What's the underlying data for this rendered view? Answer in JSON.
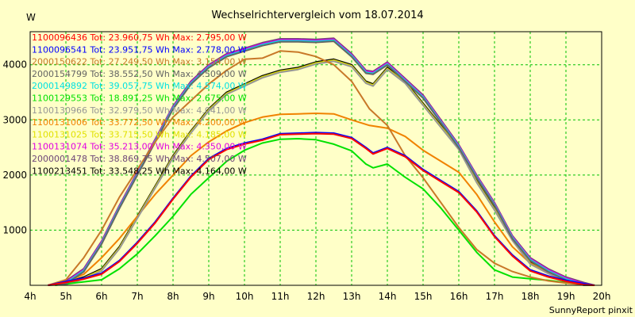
{
  "chart_data": {
    "type": "line",
    "title": "Wechselrichtervergleich vom 18.07.2014",
    "ylabel": "W",
    "footer": "SunnyReport pinxit",
    "x_ticks": [
      4,
      5,
      6,
      7,
      8,
      9,
      10,
      11,
      12,
      13,
      14,
      15,
      16,
      17,
      18,
      19,
      20
    ],
    "x_tick_labels": [
      "4h",
      "5h",
      "6h",
      "7h",
      "8h",
      "9h",
      "10h",
      "11h",
      "12h",
      "13h",
      "14h",
      "15h",
      "16h",
      "17h",
      "18h",
      "19h",
      "20h"
    ],
    "y_ticks": [
      1000,
      2000,
      3000,
      4000
    ],
    "y_tick_labels": [
      "1000",
      "2000",
      "3000",
      "4000"
    ],
    "xlim": [
      4,
      20
    ],
    "ylim": [
      0,
      4600
    ],
    "grid": true,
    "legend_placement": "top-left",
    "series": [
      {
        "name": "1100096436",
        "tot": "Tot: 23.960,75 Wh",
        "max": "Max: 2.795,00 W",
        "color": "#ff0000",
        "group": "lowA"
      },
      {
        "name": "1100096541",
        "tot": "Tot: 23.951,75 Wh",
        "max": "Max: 2.778,00 W",
        "color": "#0000ff",
        "group": "lowA"
      },
      {
        "name": "2000150622",
        "tot": "Tot: 27.249,50 Wh",
        "max": "Max: 3.154,00 W",
        "color": "#c87828",
        "group": "early"
      },
      {
        "name": "2000154799",
        "tot": "Tot: 38.552,50 Wh",
        "max": "Max: 4.509,00 W",
        "color": "#646464",
        "group": "high"
      },
      {
        "name": "2000149892",
        "tot": "Tot: 39.057,75 Wh",
        "max": "Max: 4.574,00 W",
        "color": "#00e1e1",
        "group": "high"
      },
      {
        "name": "1100129553",
        "tot": "Tot: 18.891,25 Wh",
        "max": "Max: 2.675,00 W",
        "color": "#00e100",
        "group": "lowB"
      },
      {
        "name": "1100130966",
        "tot": "Tot: 32.979,50 Wh",
        "max": "Max: 4.041,00 W",
        "color": "#969696",
        "group": "mid"
      },
      {
        "name": "1100131006",
        "tot": "Tot: 33.772,50 Wh",
        "max": "Max: 4.200,00 W",
        "color": "#f08200",
        "group": "orange"
      },
      {
        "name": "1100131025",
        "tot": "Tot: 33.715,50 Wh",
        "max": "Max: 4.185,00 W",
        "color": "#e1e100",
        "group": "mid"
      },
      {
        "name": "1100131074",
        "tot": "Tot: 35.213,00 Wh",
        "max": "Max: 4.350,00 W",
        "color": "#e100e1",
        "group": "high"
      },
      {
        "name": "2000001478",
        "tot": "Tot: 38.869,75 Wh",
        "max": "Max: 4.507,00 W",
        "color": "#6e4678",
        "group": "high"
      },
      {
        "name": "1100213451",
        "tot": "Tot: 33.548,25 Wh",
        "max": "Max: 4.164,00 W",
        "color": "#000000",
        "group": "mid"
      }
    ],
    "profiles": {
      "lowA": [
        [
          4.5,
          0
        ],
        [
          5,
          70
        ],
        [
          5.5,
          130
        ],
        [
          6,
          220
        ],
        [
          6.5,
          450
        ],
        [
          7,
          780
        ],
        [
          7.5,
          1150
        ],
        [
          8,
          1580
        ],
        [
          8.5,
          1980
        ],
        [
          9,
          2300
        ],
        [
          9.5,
          2480
        ],
        [
          10,
          2580
        ],
        [
          10.5,
          2650
        ],
        [
          11,
          2750
        ],
        [
          11.5,
          2760
        ],
        [
          12,
          2770
        ],
        [
          12.5,
          2760
        ],
        [
          13,
          2680
        ],
        [
          13.4,
          2500
        ],
        [
          13.6,
          2400
        ],
        [
          14,
          2500
        ],
        [
          14.5,
          2350
        ],
        [
          15,
          2100
        ],
        [
          15.5,
          1900
        ],
        [
          16,
          1700
        ],
        [
          16.5,
          1350
        ],
        [
          17,
          900
        ],
        [
          17.5,
          550
        ],
        [
          18,
          280
        ],
        [
          18.5,
          170
        ],
        [
          19,
          90
        ],
        [
          19.5,
          30
        ],
        [
          19.8,
          0
        ]
      ],
      "lowB": [
        [
          4.7,
          0
        ],
        [
          5.2,
          40
        ],
        [
          6,
          100
        ],
        [
          6.5,
          300
        ],
        [
          7,
          570
        ],
        [
          7.5,
          900
        ],
        [
          8,
          1250
        ],
        [
          8.5,
          1650
        ],
        [
          9,
          1950
        ],
        [
          9.5,
          2250
        ],
        [
          10,
          2450
        ],
        [
          10.5,
          2580
        ],
        [
          11,
          2650
        ],
        [
          11.5,
          2660
        ],
        [
          12,
          2640
        ],
        [
          12.5,
          2560
        ],
        [
          13,
          2440
        ],
        [
          13.4,
          2200
        ],
        [
          13.6,
          2130
        ],
        [
          14,
          2200
        ],
        [
          14.5,
          1960
        ],
        [
          15,
          1750
        ],
        [
          15.5,
          1400
        ],
        [
          16,
          1000
        ],
        [
          16.5,
          600
        ],
        [
          17,
          280
        ],
        [
          17.5,
          150
        ],
        [
          18,
          120
        ],
        [
          18.5,
          90
        ],
        [
          19,
          50
        ],
        [
          19.5,
          20
        ],
        [
          19.8,
          0
        ]
      ],
      "early": [
        [
          4.5,
          0
        ],
        [
          5,
          100
        ],
        [
          5.5,
          500
        ],
        [
          6,
          1000
        ],
        [
          6.5,
          1600
        ],
        [
          7,
          2100
        ],
        [
          7.5,
          2600
        ],
        [
          8,
          3050
        ],
        [
          8.5,
          3350
        ],
        [
          9,
          3650
        ],
        [
          9.5,
          3900
        ],
        [
          10,
          4100
        ],
        [
          10.5,
          4120
        ],
        [
          11,
          4250
        ],
        [
          11.5,
          4230
        ],
        [
          12,
          4150
        ],
        [
          12.5,
          4000
        ],
        [
          13,
          3700
        ],
        [
          13.5,
          3200
        ],
        [
          14,
          2900
        ],
        [
          14.5,
          2350
        ],
        [
          15,
          1950
        ],
        [
          15.5,
          1500
        ],
        [
          16,
          1050
        ],
        [
          16.5,
          650
        ],
        [
          17,
          400
        ],
        [
          17.5,
          250
        ],
        [
          18,
          150
        ],
        [
          18.5,
          80
        ],
        [
          19,
          40
        ],
        [
          19.5,
          10
        ],
        [
          19.8,
          0
        ]
      ],
      "high": [
        [
          4.5,
          0
        ],
        [
          5,
          80
        ],
        [
          5.5,
          300
        ],
        [
          6,
          800
        ],
        [
          6.5,
          1450
        ],
        [
          7,
          2050
        ],
        [
          7.5,
          2650
        ],
        [
          8,
          3250
        ],
        [
          8.5,
          3700
        ],
        [
          9,
          4000
        ],
        [
          9.5,
          4200
        ],
        [
          10,
          4300
        ],
        [
          10.5,
          4400
        ],
        [
          11,
          4470
        ],
        [
          11.5,
          4470
        ],
        [
          12,
          4460
        ],
        [
          12.5,
          4480
        ],
        [
          13,
          4200
        ],
        [
          13.4,
          3900
        ],
        [
          13.6,
          3880
        ],
        [
          14,
          4050
        ],
        [
          14.5,
          3750
        ],
        [
          15,
          3450
        ],
        [
          15.5,
          3000
        ],
        [
          16,
          2550
        ],
        [
          16.5,
          2000
        ],
        [
          17,
          1500
        ],
        [
          17.5,
          900
        ],
        [
          18,
          500
        ],
        [
          18.5,
          300
        ],
        [
          19,
          150
        ],
        [
          19.5,
          50
        ],
        [
          19.8,
          0
        ]
      ],
      "mid": [
        [
          4.5,
          0
        ],
        [
          5,
          50
        ],
        [
          5.5,
          150
        ],
        [
          6,
          300
        ],
        [
          6.5,
          700
        ],
        [
          7,
          1250
        ],
        [
          7.5,
          1800
        ],
        [
          8,
          2350
        ],
        [
          8.5,
          2800
        ],
        [
          9,
          3200
        ],
        [
          9.5,
          3500
        ],
        [
          10,
          3650
        ],
        [
          10.5,
          3800
        ],
        [
          11,
          3900
        ],
        [
          11.5,
          3950
        ],
        [
          12,
          4050
        ],
        [
          12.5,
          4100
        ],
        [
          13,
          4000
        ],
        [
          13.4,
          3700
        ],
        [
          13.6,
          3650
        ],
        [
          14,
          3950
        ],
        [
          14.5,
          3700
        ],
        [
          15,
          3300
        ],
        [
          15.5,
          2900
        ],
        [
          16,
          2500
        ],
        [
          16.5,
          1900
        ],
        [
          17,
          1400
        ],
        [
          17.5,
          850
        ],
        [
          18,
          420
        ],
        [
          18.5,
          250
        ],
        [
          19,
          120
        ],
        [
          19.5,
          40
        ],
        [
          19.8,
          0
        ]
      ],
      "orange": [
        [
          4.5,
          0
        ],
        [
          5,
          60
        ],
        [
          5.5,
          200
        ],
        [
          6,
          500
        ],
        [
          6.5,
          850
        ],
        [
          7,
          1250
        ],
        [
          7.5,
          1650
        ],
        [
          8,
          2000
        ],
        [
          8.5,
          2350
        ],
        [
          9,
          2600
        ],
        [
          9.5,
          2800
        ],
        [
          10,
          2950
        ],
        [
          10.5,
          3050
        ],
        [
          11,
          3100
        ],
        [
          11.5,
          3110
        ],
        [
          12,
          3120
        ],
        [
          12.5,
          3110
        ],
        [
          13,
          3000
        ],
        [
          13.5,
          2900
        ],
        [
          14,
          2850
        ],
        [
          14.5,
          2700
        ],
        [
          15,
          2450
        ],
        [
          15.5,
          2250
        ],
        [
          16,
          2050
        ],
        [
          16.5,
          1650
        ],
        [
          17,
          1150
        ],
        [
          17.5,
          700
        ],
        [
          18,
          400
        ],
        [
          18.5,
          220
        ],
        [
          19,
          90
        ],
        [
          19.5,
          25
        ],
        [
          19.8,
          0
        ]
      ]
    }
  }
}
